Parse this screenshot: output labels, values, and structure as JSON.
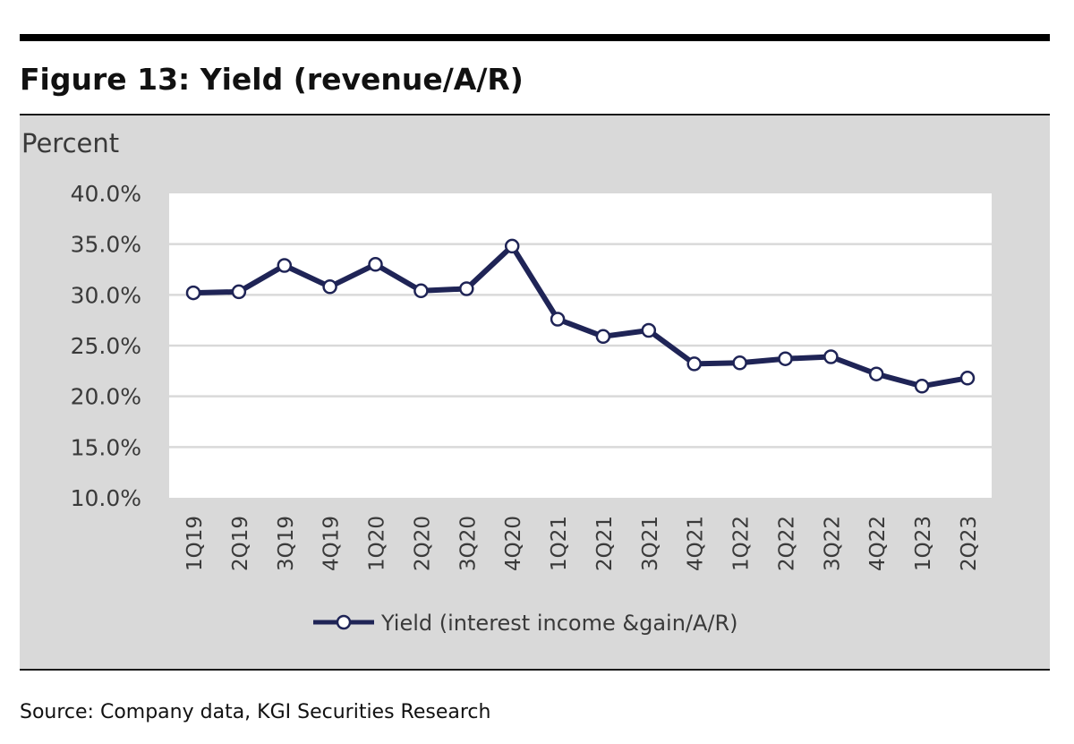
{
  "figure": {
    "title": "Figure 13: Yield (revenue/A/R)",
    "source": "Source: Company data, KGI Securities Research"
  },
  "colors": {
    "panel_bg": "#d9d9d9",
    "plot_bg": "#ffffff",
    "line": "#1f2456",
    "marker_fill": "#ffffff",
    "grid": "#d9d9d9",
    "text": "#3a3a3a"
  },
  "chart_data": {
    "type": "line",
    "title": "Figure 13: Yield (revenue/A/R)",
    "ylabel": "Percent",
    "xlabel": "",
    "ylim": [
      10,
      40
    ],
    "yticks": [
      40,
      35,
      30,
      25,
      20,
      15,
      10
    ],
    "ytick_labels": [
      "40.0%",
      "35.0%",
      "30.0%",
      "25.0%",
      "20.0%",
      "15.0%",
      "10.0%"
    ],
    "grid": true,
    "legend_position": "bottom-center",
    "categories": [
      "1Q19",
      "2Q19",
      "3Q19",
      "4Q19",
      "1Q20",
      "2Q20",
      "3Q20",
      "4Q20",
      "1Q21",
      "2Q21",
      "3Q21",
      "4Q21",
      "1Q22",
      "2Q22",
      "3Q22",
      "4Q22",
      "1Q23",
      "2Q23"
    ],
    "series": [
      {
        "name": "Yield (interest income &gain/A/R)",
        "values": [
          30.2,
          30.3,
          32.9,
          30.8,
          33.0,
          30.4,
          30.6,
          34.8,
          27.6,
          25.9,
          26.5,
          23.2,
          23.3,
          23.7,
          23.9,
          22.2,
          21.0,
          21.8
        ]
      }
    ]
  }
}
